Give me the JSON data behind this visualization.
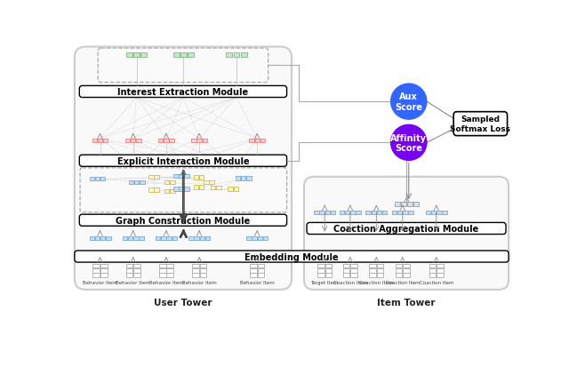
{
  "bg_color": "#ffffff",
  "user_tower_label": "User Tower",
  "item_tower_label": "Item Tower",
  "modules": {
    "interest_extraction": "Interest Extraction Module",
    "explicit_interaction": "Explicit Interaction Module",
    "graph_construction": "Graph Construction Module",
    "embedding": "Embedding Module",
    "coaction_aggregation": "Coaction Aggregation Module"
  },
  "circles": {
    "aux_score": {
      "label": "Aux\nScore",
      "color": "#3366ff",
      "text_color": "#ffffff"
    },
    "affinity_score": {
      "label": "Affinity\nScore",
      "color": "#7700ee",
      "text_color": "#ffffff"
    }
  },
  "softmax_box": {
    "label": "Sampled\nSoftmax Loss"
  },
  "behavior_items": [
    "Behavior Item",
    "Behavior Item",
    "Behavior Item",
    "Behavior Item",
    "Behavior Item"
  ],
  "item_tower_items": [
    "Target Item",
    "Coaction Item",
    "Coaction Item",
    "Coaction Item",
    "Coaction Item"
  ],
  "colors": {
    "green_block": "#c8e6c9",
    "green_border": "#7cb97e",
    "pink_block": "#ffcdd2",
    "pink_border": "#e08080",
    "blue_block": "#c5ddf5",
    "blue_border": "#7aaad0",
    "yellow_block": "#fef9c3",
    "yellow_border": "#d4b84a",
    "gray_block": "#dde0e8",
    "gray_border": "#9999aa",
    "white_block": "#ffffff",
    "white_border": "#aaaaaa",
    "arrow_dark": "#555555",
    "arrow_light": "#999999",
    "line_gray": "#aaaaaa"
  }
}
